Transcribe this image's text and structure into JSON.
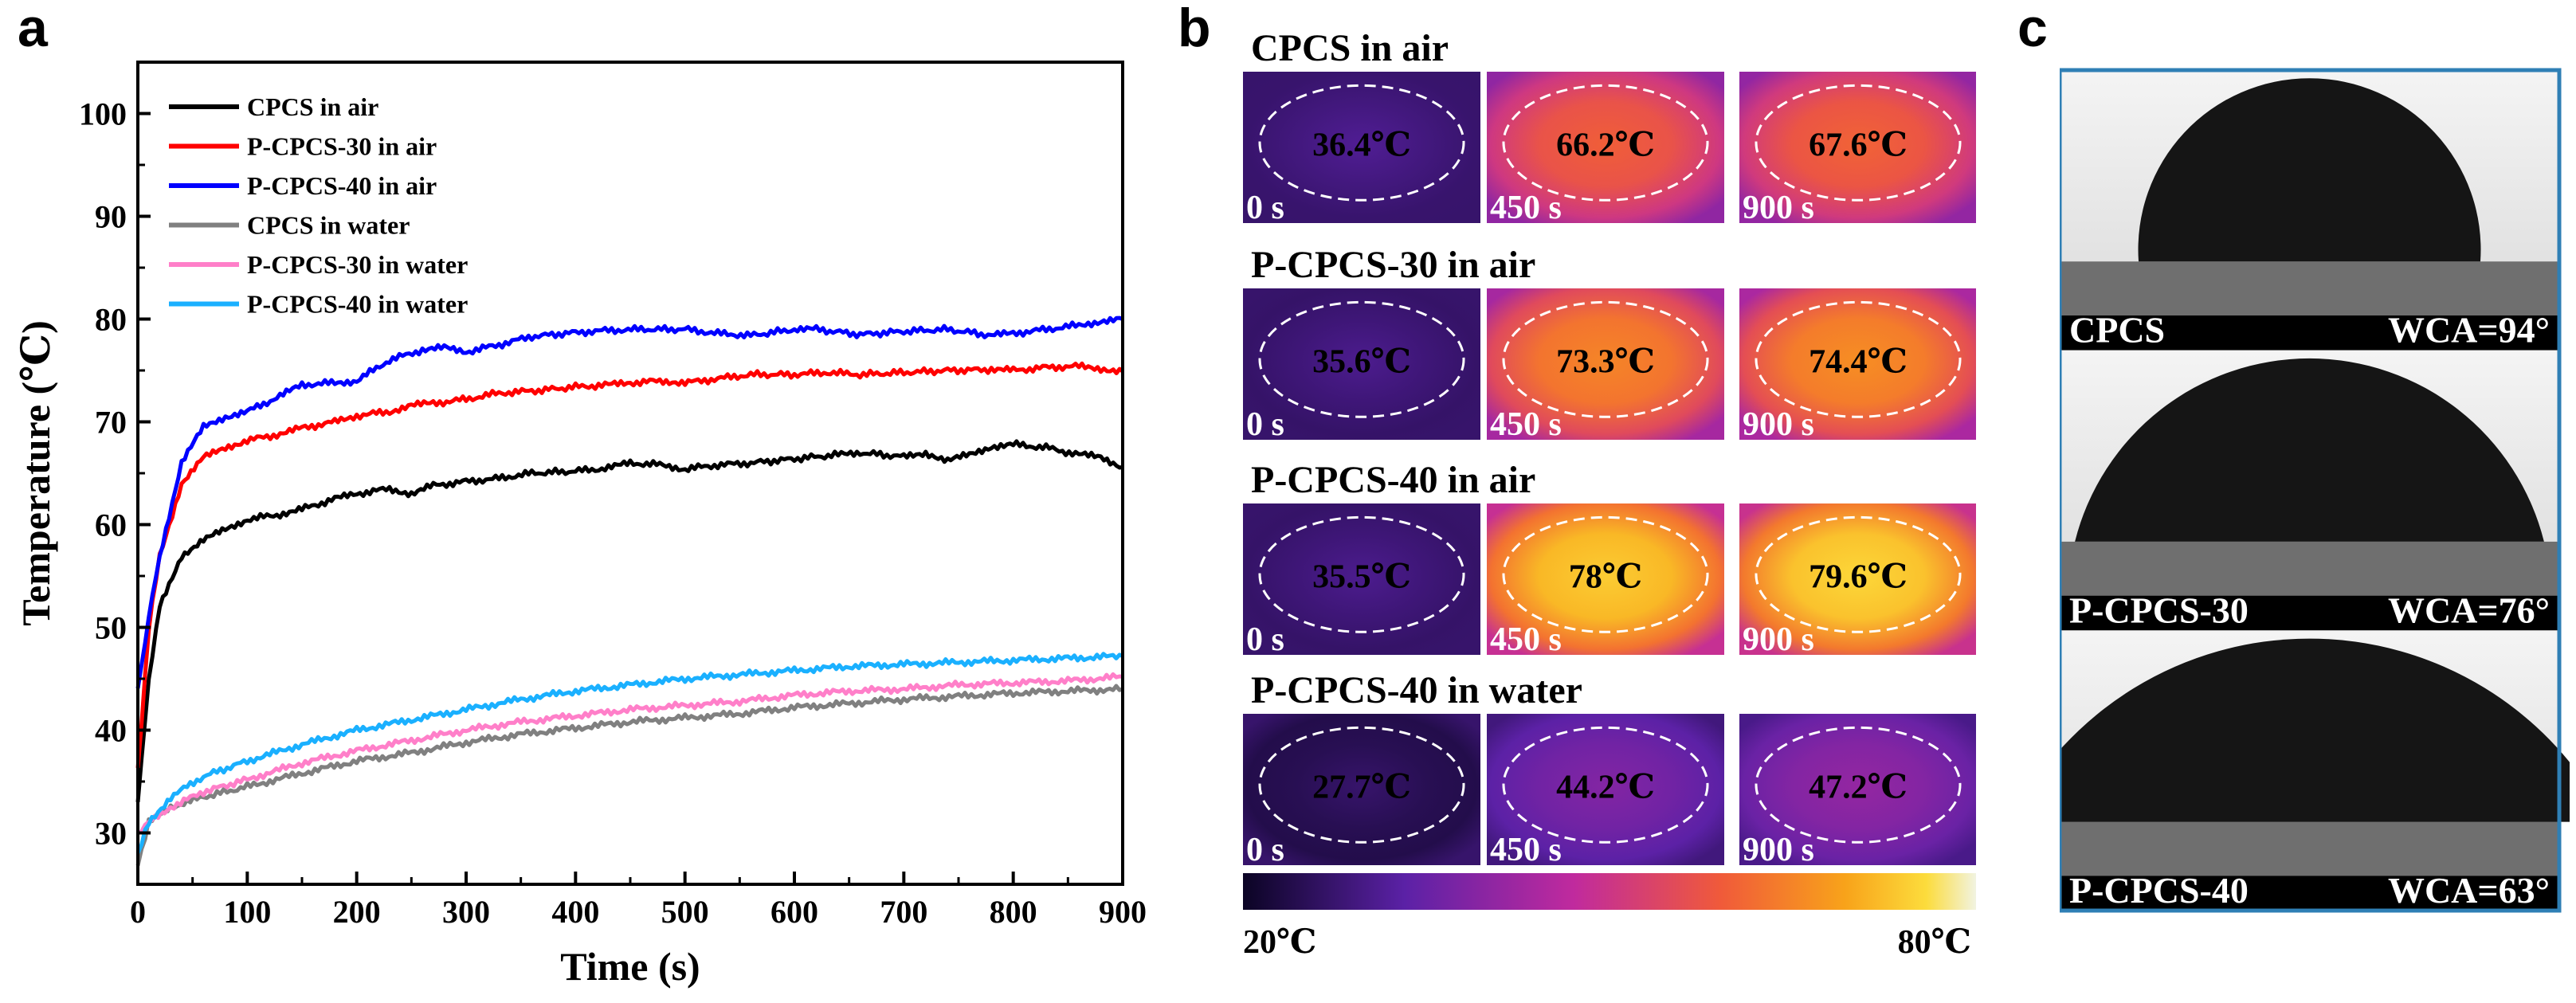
{
  "panels": {
    "a": "a",
    "b": "b",
    "c": "c"
  },
  "chart_data": {
    "type": "line",
    "title": "",
    "xlabel": "Time (s)",
    "ylabel": "Temperature (℃)",
    "xlim": [
      0,
      900
    ],
    "ylim": [
      25,
      105
    ],
    "xticks": [
      0,
      100,
      200,
      300,
      400,
      500,
      600,
      700,
      800,
      900
    ],
    "yticks": [
      30,
      40,
      50,
      60,
      70,
      80,
      90,
      100
    ],
    "legend_position": "top-left",
    "series": [
      {
        "name": "CPCS in air",
        "color": "#000000",
        "points": [
          [
            0,
            33
          ],
          [
            10,
            45
          ],
          [
            20,
            52
          ],
          [
            40,
            57
          ],
          [
            60,
            58.5
          ],
          [
            80,
            59.5
          ],
          [
            100,
            60.5
          ],
          [
            130,
            61
          ],
          [
            150,
            61.5
          ],
          [
            180,
            62.5
          ],
          [
            200,
            63
          ],
          [
            230,
            63.5
          ],
          [
            250,
            63
          ],
          [
            270,
            63.8
          ],
          [
            300,
            64.2
          ],
          [
            330,
            64.5
          ],
          [
            360,
            65
          ],
          [
            400,
            65.2
          ],
          [
            430,
            65.5
          ],
          [
            450,
            66
          ],
          [
            480,
            65.8
          ],
          [
            500,
            65.4
          ],
          [
            530,
            65.8
          ],
          [
            560,
            66
          ],
          [
            600,
            66.4
          ],
          [
            640,
            66.8
          ],
          [
            660,
            67
          ],
          [
            700,
            66.6
          ],
          [
            720,
            67
          ],
          [
            740,
            66.2
          ],
          [
            760,
            66.8
          ],
          [
            780,
            67.6
          ],
          [
            800,
            67.8
          ],
          [
            830,
            67.5
          ],
          [
            860,
            66.8
          ],
          [
            880,
            66.6
          ],
          [
            900,
            65.6
          ]
        ]
      },
      {
        "name": "P-CPCS-30 in air",
        "color": "#ff0000",
        "points": [
          [
            0,
            36
          ],
          [
            10,
            50
          ],
          [
            20,
            57
          ],
          [
            40,
            64
          ],
          [
            60,
            66.5
          ],
          [
            80,
            67.5
          ],
          [
            100,
            68.2
          ],
          [
            130,
            68.8
          ],
          [
            150,
            69.4
          ],
          [
            180,
            70
          ],
          [
            200,
            70.6
          ],
          [
            230,
            71
          ],
          [
            250,
            71.6
          ],
          [
            270,
            71.8
          ],
          [
            300,
            72.2
          ],
          [
            330,
            72.8
          ],
          [
            360,
            73
          ],
          [
            400,
            73.4
          ],
          [
            430,
            73.6
          ],
          [
            450,
            73.8
          ],
          [
            480,
            74
          ],
          [
            500,
            73.8
          ],
          [
            530,
            74.2
          ],
          [
            560,
            74.6
          ],
          [
            600,
            74.6
          ],
          [
            630,
            74.8
          ],
          [
            660,
            74.6
          ],
          [
            700,
            74.8
          ],
          [
            740,
            75
          ],
          [
            780,
            75.1
          ],
          [
            800,
            75
          ],
          [
            830,
            75.3
          ],
          [
            860,
            75.4
          ],
          [
            880,
            75.2
          ],
          [
            900,
            74.9
          ]
        ]
      },
      {
        "name": "P-CPCS-40 in air",
        "color": "#0000ff",
        "points": [
          [
            0,
            44
          ],
          [
            10,
            51
          ],
          [
            20,
            57
          ],
          [
            40,
            66
          ],
          [
            60,
            69.5
          ],
          [
            80,
            70.5
          ],
          [
            100,
            71
          ],
          [
            130,
            72.5
          ],
          [
            150,
            73.6
          ],
          [
            180,
            73.8
          ],
          [
            200,
            74
          ],
          [
            230,
            76
          ],
          [
            260,
            77
          ],
          [
            280,
            77.2
          ],
          [
            300,
            76.8
          ],
          [
            330,
            77.5
          ],
          [
            360,
            78.3
          ],
          [
            400,
            78.7
          ],
          [
            430,
            78.9
          ],
          [
            460,
            79
          ],
          [
            500,
            79
          ],
          [
            530,
            78.6
          ],
          [
            560,
            78.4
          ],
          [
            600,
            79
          ],
          [
            620,
            79
          ],
          [
            660,
            78.5
          ],
          [
            700,
            78.8
          ],
          [
            740,
            79
          ],
          [
            780,
            78.4
          ],
          [
            800,
            78.6
          ],
          [
            830,
            79
          ],
          [
            860,
            79.4
          ],
          [
            880,
            79.8
          ],
          [
            900,
            80
          ]
        ]
      },
      {
        "name": "CPCS in water",
        "color": "#808080",
        "points": [
          [
            0,
            27
          ],
          [
            10,
            31
          ],
          [
            30,
            32.5
          ],
          [
            60,
            33.5
          ],
          [
            100,
            34.5
          ],
          [
            150,
            35.8
          ],
          [
            200,
            37
          ],
          [
            250,
            37.8
          ],
          [
            300,
            38.8
          ],
          [
            350,
            39.6
          ],
          [
            400,
            40.2
          ],
          [
            450,
            40.8
          ],
          [
            500,
            41.2
          ],
          [
            550,
            41.6
          ],
          [
            600,
            42.2
          ],
          [
            650,
            42.6
          ],
          [
            700,
            43
          ],
          [
            750,
            43.3
          ],
          [
            800,
            43.6
          ],
          [
            850,
            43.8
          ],
          [
            900,
            44
          ]
        ]
      },
      {
        "name": "P-CPCS-30 in water",
        "color": "#ff7fc9",
        "points": [
          [
            0,
            30
          ],
          [
            10,
            31
          ],
          [
            30,
            32.5
          ],
          [
            60,
            34
          ],
          [
            100,
            35.2
          ],
          [
            150,
            36.8
          ],
          [
            200,
            38
          ],
          [
            250,
            39
          ],
          [
            300,
            40
          ],
          [
            350,
            40.8
          ],
          [
            400,
            41.4
          ],
          [
            450,
            42
          ],
          [
            500,
            42.4
          ],
          [
            550,
            42.8
          ],
          [
            600,
            43.4
          ],
          [
            650,
            43.8
          ],
          [
            700,
            44
          ],
          [
            750,
            44.4
          ],
          [
            800,
            44.6
          ],
          [
            850,
            44.8
          ],
          [
            900,
            45.2
          ]
        ]
      },
      {
        "name": "P-CPCS-40 in water",
        "color": "#1ab0ff",
        "points": [
          [
            0,
            28
          ],
          [
            10,
            31
          ],
          [
            30,
            33.5
          ],
          [
            60,
            35.5
          ],
          [
            100,
            37
          ],
          [
            150,
            38.6
          ],
          [
            200,
            40
          ],
          [
            250,
            41
          ],
          [
            300,
            42
          ],
          [
            350,
            43
          ],
          [
            400,
            43.8
          ],
          [
            450,
            44.4
          ],
          [
            500,
            45
          ],
          [
            550,
            45.4
          ],
          [
            600,
            45.8
          ],
          [
            650,
            46.2
          ],
          [
            700,
            46.4
          ],
          [
            750,
            46.6
          ],
          [
            800,
            46.8
          ],
          [
            850,
            47
          ],
          [
            900,
            47.2
          ]
        ]
      }
    ]
  },
  "thermal": {
    "rows": [
      {
        "title": "CPCS in air",
        "frames": [
          {
            "temp": "36.4℃",
            "time": "0 s",
            "level": 0.15
          },
          {
            "temp": "66.2℃",
            "time": "450 s",
            "level": 0.62
          },
          {
            "temp": "67.6℃",
            "time": "900 s",
            "level": 0.63
          }
        ]
      },
      {
        "title": "P-CPCS-30 in air",
        "frames": [
          {
            "temp": "35.6℃",
            "time": "0 s",
            "level": 0.14
          },
          {
            "temp": "73.3℃",
            "time": "450 s",
            "level": 0.71
          },
          {
            "temp": "74.4℃",
            "time": "900 s",
            "level": 0.73
          }
        ]
      },
      {
        "title": "P-CPCS-40 in air",
        "frames": [
          {
            "temp": "35.5℃",
            "time": "0 s",
            "level": 0.14
          },
          {
            "temp": "78℃",
            "time": "450 s",
            "level": 0.86
          },
          {
            "temp": "79.6℃",
            "time": "900 s",
            "level": 0.88
          }
        ]
      },
      {
        "title": "P-CPCS-40 in water",
        "frames": [
          {
            "temp": "27.7℃",
            "time": "0 s",
            "level": 0.08
          },
          {
            "temp": "44.2℃",
            "time": "450 s",
            "level": 0.27
          },
          {
            "temp": "47.2℃",
            "time": "900 s",
            "level": 0.31
          }
        ]
      }
    ],
    "colorbar": {
      "min_label": "20℃",
      "max_label": "80℃"
    },
    "colors": {
      "cold": "#0b0424",
      "mid1": "#5b21a6",
      "mid2": "#c02a9e",
      "mid3": "#f05a3a",
      "warm": "#f8a31a",
      "hot": "#fcdc3c",
      "max": "#f1f4e6"
    }
  },
  "contact_angle": {
    "items": [
      {
        "sample": "CPCS",
        "wca": "WCA=94°",
        "angle": 94
      },
      {
        "sample": "P-CPCS-30",
        "wca": "WCA=76°",
        "angle": 76
      },
      {
        "sample": "P-CPCS-40",
        "wca": "WCA=63°",
        "angle": 63
      }
    ],
    "frame_color": "#2f7fb5"
  }
}
